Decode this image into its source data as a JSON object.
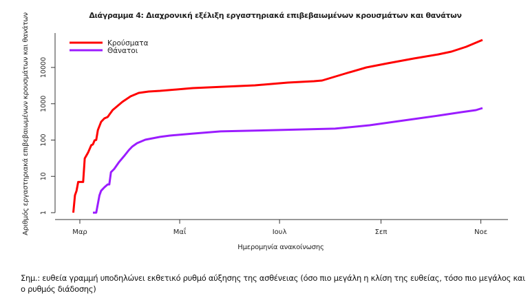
{
  "chart_data": {
    "type": "line",
    "title": "Διάγραμμα 4: Διαχρονική εξέλιξη εργαστηριακά επιβεβαιωμένων κρουσμάτων και θανάτων",
    "xlabel": "Ημερομηνία ανακοίνωσης",
    "ylabel": "Αριθμός εργαστηριακά επιβεβαιωμένων κρουσμάτων και θανάτων",
    "y_scale": "log",
    "ylim": [
      1,
      70000
    ],
    "xlim": [
      "2020-02-16",
      "2020-11-17"
    ],
    "x_ticks": [
      {
        "date": "2020-03-01",
        "label": "Μαρ"
      },
      {
        "date": "2020-05-01",
        "label": "Μαΐ"
      },
      {
        "date": "2020-07-01",
        "label": "Ιουλ"
      },
      {
        "date": "2020-09-01",
        "label": "Σεπ"
      },
      {
        "date": "2020-11-01",
        "label": "Νοε"
      }
    ],
    "y_ticks": [
      {
        "value": 1,
        "label": "1"
      },
      {
        "value": 10,
        "label": "10"
      },
      {
        "value": 100,
        "label": "100"
      },
      {
        "value": 1000,
        "label": "1000"
      },
      {
        "value": 10000,
        "label": "10000"
      }
    ],
    "grid": false,
    "legend_position": "top-left",
    "series": [
      {
        "name": "Κρούσματα",
        "color": "#ff0000",
        "points": [
          [
            "2020-02-26",
            1
          ],
          [
            "2020-02-27",
            3
          ],
          [
            "2020-02-28",
            4
          ],
          [
            "2020-02-29",
            7
          ],
          [
            "2020-03-03",
            7
          ],
          [
            "2020-03-04",
            31
          ],
          [
            "2020-03-06",
            45
          ],
          [
            "2020-03-08",
            72
          ],
          [
            "2020-03-09",
            76
          ],
          [
            "2020-03-10",
            98
          ],
          [
            "2020-03-11",
            101
          ],
          [
            "2020-03-12",
            188
          ],
          [
            "2020-03-14",
            318
          ],
          [
            "2020-03-16",
            395
          ],
          [
            "2020-03-18",
            432
          ],
          [
            "2020-03-21",
            668
          ],
          [
            "2020-03-27",
            1128
          ],
          [
            "2020-04-01",
            1600
          ],
          [
            "2020-04-06",
            1990
          ],
          [
            "2020-04-12",
            2170
          ],
          [
            "2020-04-19",
            2265
          ],
          [
            "2020-05-09",
            2700
          ],
          [
            "2020-06-16",
            3215
          ],
          [
            "2020-07-06",
            3830
          ],
          [
            "2020-07-22",
            4180
          ],
          [
            "2020-07-27",
            4365
          ],
          [
            "2020-08-10",
            6750
          ],
          [
            "2020-08-23",
            10000
          ],
          [
            "2020-09-05",
            13000
          ],
          [
            "2020-09-21",
            17600
          ],
          [
            "2020-10-06",
            22900
          ],
          [
            "2020-10-14",
            27300
          ],
          [
            "2020-10-23",
            37000
          ],
          [
            "2020-11-02",
            57300
          ]
        ]
      },
      {
        "name": "Θάνατοι",
        "color": "#9b1cff",
        "points": [
          [
            "2020-03-09",
            1
          ],
          [
            "2020-03-11",
            1
          ],
          [
            "2020-03-13",
            3
          ],
          [
            "2020-03-14",
            4
          ],
          [
            "2020-03-16",
            5
          ],
          [
            "2020-03-18",
            6
          ],
          [
            "2020-03-19",
            6
          ],
          [
            "2020-03-20",
            13
          ],
          [
            "2020-03-22",
            16
          ],
          [
            "2020-03-25",
            25
          ],
          [
            "2020-03-28",
            36
          ],
          [
            "2020-03-31",
            53
          ],
          [
            "2020-04-02",
            66
          ],
          [
            "2020-04-05",
            82
          ],
          [
            "2020-04-10",
            102
          ],
          [
            "2020-04-19",
            122
          ],
          [
            "2020-04-25",
            133
          ],
          [
            "2020-05-09",
            151
          ],
          [
            "2020-05-26",
            173
          ],
          [
            "2020-06-29",
            188
          ],
          [
            "2020-08-04",
            206
          ],
          [
            "2020-08-25",
            256
          ],
          [
            "2020-09-15",
            347
          ],
          [
            "2020-10-06",
            471
          ],
          [
            "2020-10-20",
            586
          ],
          [
            "2020-10-29",
            668
          ],
          [
            "2020-11-02",
            762
          ]
        ]
      }
    ]
  },
  "note": "Σημ.: ευθεία γραμμή υποδηλώνει εκθετικό ρυθμό αύξησης της ασθένειας (όσο πιο μεγάλη η κλίση της ευθείας, τόσο πιο μεγάλος και ο ρυθμός διάδοσης)"
}
